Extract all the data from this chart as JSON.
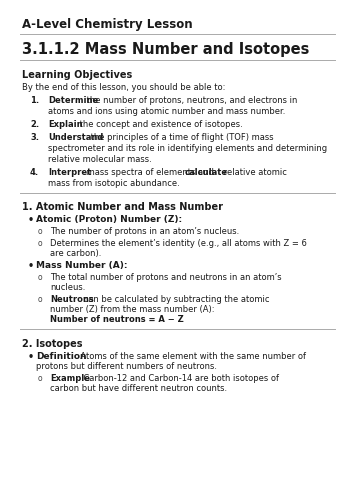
{
  "bg_color": "#ffffff",
  "text_color": "#1a1a1a",
  "header": "A-Level Chemistry Lesson",
  "title": "3.1.1.2 Mass Number and Isotopes",
  "section_lo": "Learning Objectives",
  "lo_intro": "By the end of this lesson, you should be able to:",
  "lo_items": [
    [
      "Determine",
      " the number of protons, neutrons, and electrons in\natoms and ions using atomic number and mass number."
    ],
    [
      "Explain",
      " the concept and existence of isotopes."
    ],
    [
      "Understand",
      " the principles of a time of flight (TOF) mass\nspectrometer and its role in identifying elements and determining\nrelative molecular mass."
    ],
    [
      "Interpret",
      " mass spectra of elements and ",
      "calculate",
      " relative atomic\nmass from isotopic abundance."
    ]
  ],
  "section1": "1. Atomic Number and Mass Number",
  "bullet1_head": "Atomic (Proton) Number (Z):",
  "bullet1_subs": [
    "The number of protons in an atom’s nucleus.",
    "Determines the element’s identity (e.g., all atoms with Z = 6\nare carbon)."
  ],
  "bullet2_head": "Mass Number (A):",
  "bullet2_subs_simple": "The total number of protons and neutrons in an atom’s\nnucleus.",
  "bullet2_sub_neutrons_bold": "Neutrons",
  "bullet2_sub_neutrons_text": " can be calculated by subtracting the atomic\nnumber (Z) from the mass number (A):",
  "bullet2_sub_neutrons_formula": "Number of neutrons = A − Z",
  "section2": "2. Isotopes",
  "iso_bullet_head": "Definition",
  "iso_bullet_text": ": Atoms of the same element with the same number of\nprotons but different numbers of neutrons.",
  "iso_sub_head": "Example",
  "iso_sub_text": ": Carbon-12 and Carbon-14 are both isotopes of\ncarbon but have different neutron counts."
}
